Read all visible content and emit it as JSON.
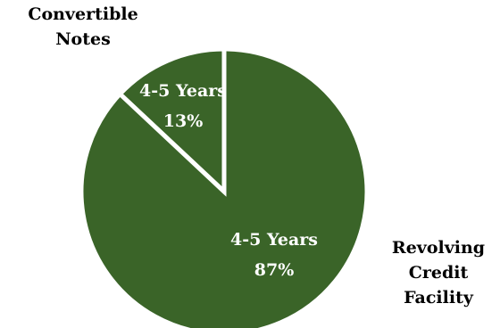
{
  "chart_data": {
    "type": "pie",
    "start_angle_deg": 0,
    "direction": "counterclockwise",
    "slices": [
      {
        "category": "Convertible Notes",
        "label_line1": "4-5 Years",
        "label_line2": "13%",
        "value": 13,
        "color": "#ffffff"
      },
      {
        "category": "Revolving Credit Facility",
        "label_line1": "4-5 Years",
        "label_line2": "87%",
        "value": 87,
        "color": "#3a6428"
      }
    ]
  },
  "labels": {
    "convertible": [
      "Convertible",
      "Notes"
    ],
    "revolving": [
      "Revolving",
      "Credit",
      "Facility"
    ]
  },
  "colors": {
    "fill": "#3a6428",
    "edge": "#ffffff",
    "inside_text": "#ffffff"
  }
}
